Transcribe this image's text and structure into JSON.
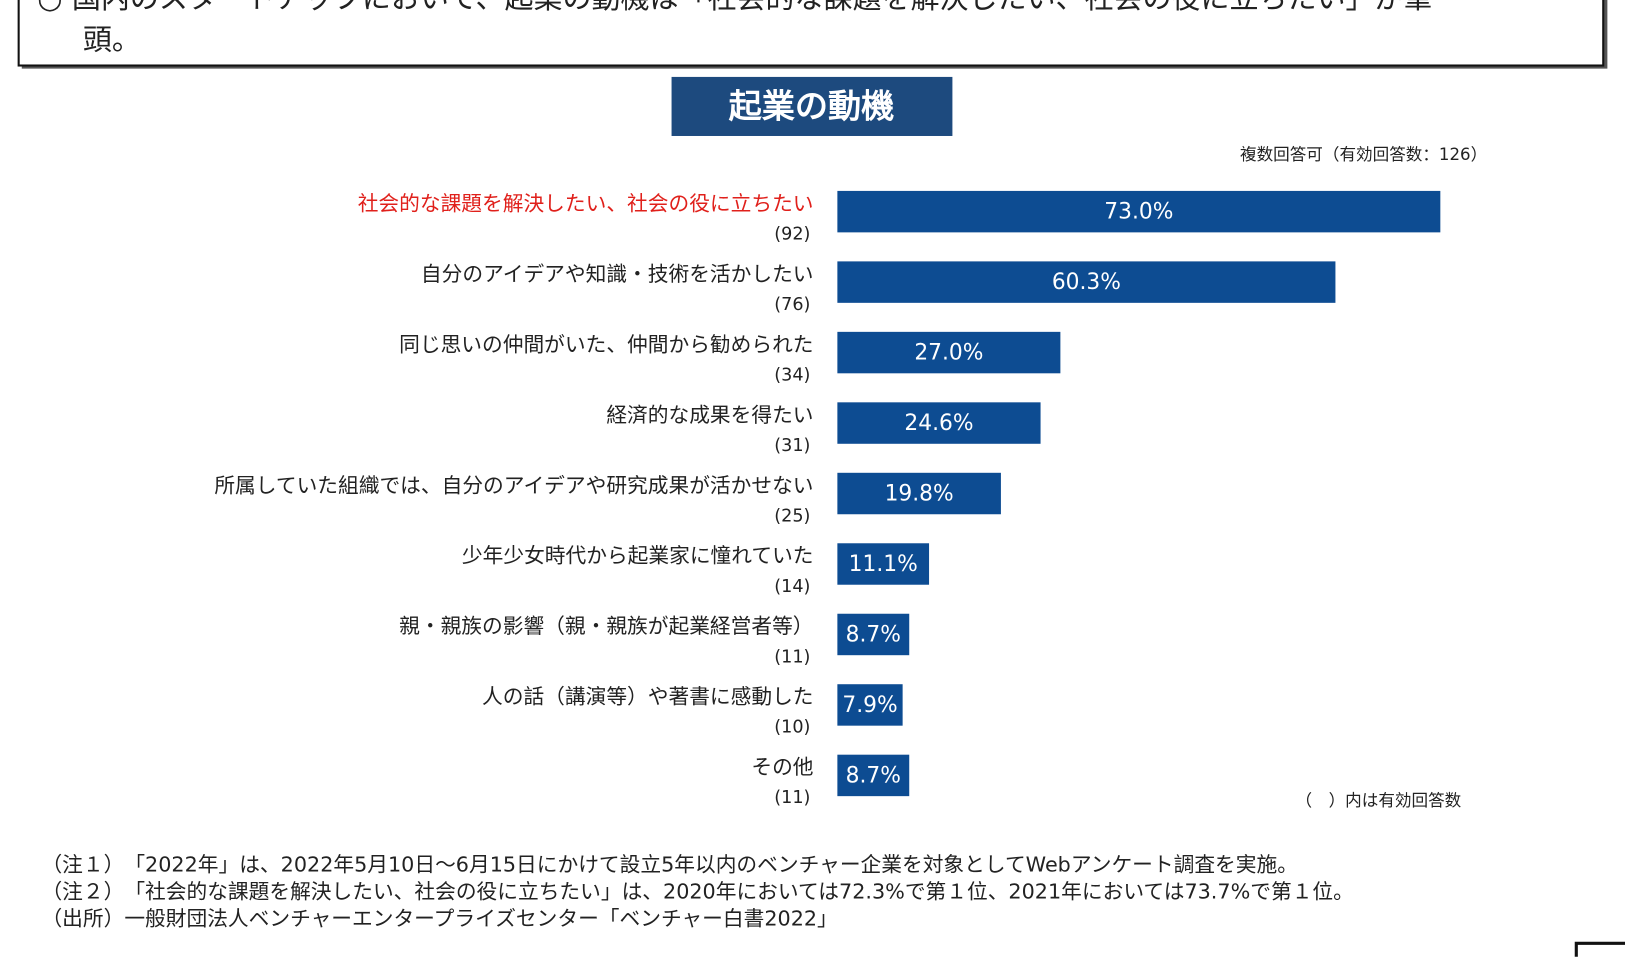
{
  "header": {
    "lines": [
      "○ 国内のスタートアップにおいて、起業の動機は「社会的な課題を解決したい、社会の役に立ちたい」が筆",
      "頭。"
    ]
  },
  "chart_data": {
    "type": "bar",
    "orientation": "horizontal",
    "title": "起業の動機",
    "subtitle": "複数回答可（有効回答数：126）",
    "categories": [
      "社会的な課題を解決したい、社会の役に立ちたい",
      "自分のアイデアや知識・技術を活かしたい",
      "同じ思いの仲間がいた、仲間から勧められた",
      "経済的な成果を得たい",
      "所属していた組織では、自分のアイデアや研究成果が活かせない",
      "少年少女時代から起業家に憧れていた",
      "親・親族の影響（親・親族が起業経営者等）",
      "人の話（講演等）や著書に感動した",
      "その他"
    ],
    "values": [
      73.0,
      60.3,
      27.0,
      24.6,
      19.8,
      11.1,
      8.7,
      7.9,
      8.7
    ],
    "value_labels": [
      "73.0%",
      "60.3%",
      "27.0%",
      "24.6%",
      "19.8%",
      "11.1%",
      "8.7%",
      "7.9%",
      "8.7%"
    ],
    "counts": [
      "(92)",
      "(76)",
      "(34)",
      "(31)",
      "(25)",
      "(14)",
      "(11)",
      "(10)",
      "(11)"
    ],
    "color": "#0d4c92",
    "highlight_category": 0,
    "highlight_color": "#e0201b",
    "note": "（　）内は有効回答数"
  },
  "footnotes": [
    "（注１）　「2022年」は、2022年5月10日～6月15日にかけて設立5年以内のベンチャー企業を対象としてWebアンケート調査を実施。",
    "（注２）　「社会的な課題を解決したい、社会の役に立ちたい」は、2020年においては72.3%で第１位、2021年においては73.7%で第１位。",
    "（出所）一般財団法人ベンチャーエンタープライズセンター「ベンチャー白書2022」"
  ]
}
